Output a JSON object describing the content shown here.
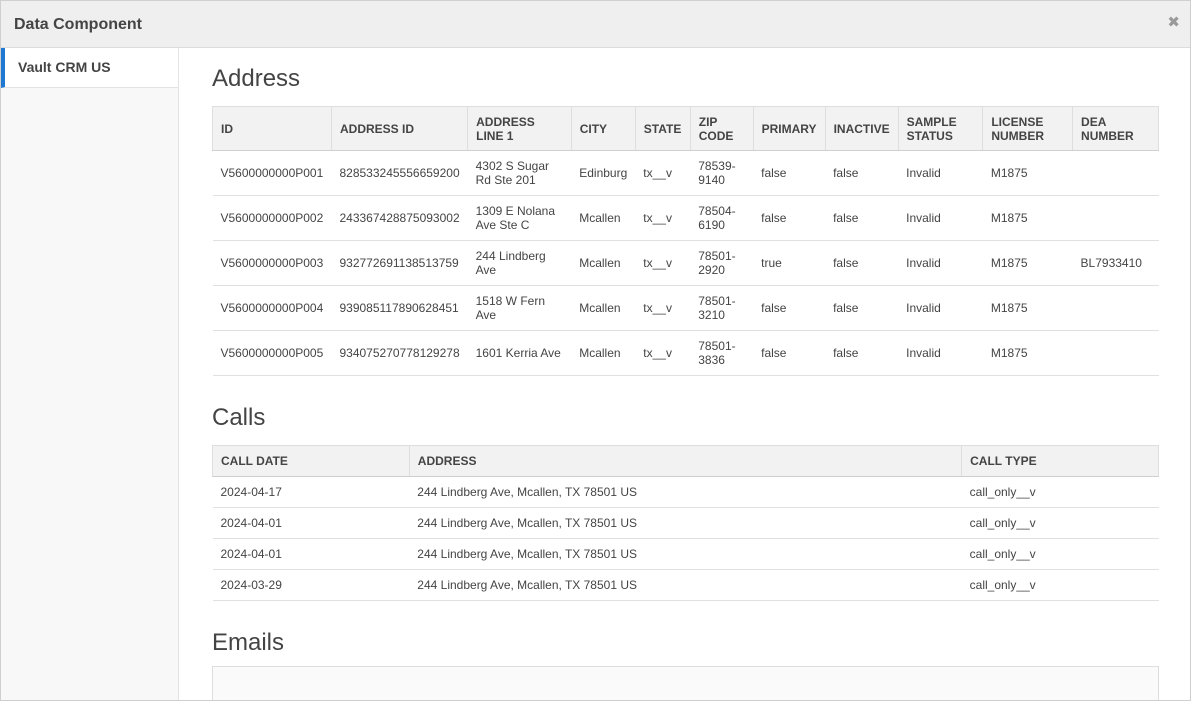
{
  "dialog": {
    "title": "Data Component",
    "close_glyph": "✖"
  },
  "sidebar": {
    "items": [
      {
        "label": "Vault CRM US"
      }
    ]
  },
  "address": {
    "heading": "Address",
    "columns": [
      "ID",
      "ADDRESS ID",
      "ADDRESS LINE 1",
      "CITY",
      "STATE",
      "ZIP CODE",
      "PRIMARY",
      "INACTIVE",
      "SAMPLE STATUS",
      "LICENSE NUMBER",
      "DEA NUMBER"
    ],
    "rows": [
      [
        "V5600000000P001",
        "828533245556659200",
        "4302 S Sugar Rd Ste 201",
        "Edinburg",
        "tx__v",
        "78539-9140",
        "false",
        "false",
        "Invalid",
        "M1875",
        ""
      ],
      [
        "V5600000000P002",
        "243367428875093002",
        "1309 E Nolana Ave Ste C",
        "Mcallen",
        "tx__v",
        "78504-6190",
        "false",
        "false",
        "Invalid",
        "M1875",
        ""
      ],
      [
        "V5600000000P003",
        "932772691138513759",
        "244 Lindberg Ave",
        "Mcallen",
        "tx__v",
        "78501-2920",
        "true",
        "false",
        "Invalid",
        "M1875",
        "BL7933410"
      ],
      [
        "V5600000000P004",
        "939085117890628451",
        "1518 W Fern Ave",
        "Mcallen",
        "tx__v",
        "78501-3210",
        "false",
        "false",
        "Invalid",
        "M1875",
        ""
      ],
      [
        "V5600000000P005",
        "934075270778129278",
        "1601 Kerria Ave",
        "Mcallen",
        "tx__v",
        "78501-3836",
        "false",
        "false",
        "Invalid",
        "M1875",
        ""
      ]
    ]
  },
  "calls": {
    "heading": "Calls",
    "columns": [
      "CALL DATE",
      "ADDRESS",
      "CALL TYPE"
    ],
    "rows": [
      [
        "2024-04-17",
        "244 Lindberg Ave, Mcallen, TX 78501 US",
        "call_only__v"
      ],
      [
        "2024-04-01",
        "244 Lindberg Ave, Mcallen, TX 78501 US",
        "call_only__v"
      ],
      [
        "2024-04-01",
        "244 Lindberg Ave, Mcallen, TX 78501 US",
        "call_only__v"
      ],
      [
        "2024-03-29",
        "244 Lindberg Ave, Mcallen, TX 78501 US",
        "call_only__v"
      ]
    ]
  },
  "emails": {
    "heading": "Emails"
  }
}
